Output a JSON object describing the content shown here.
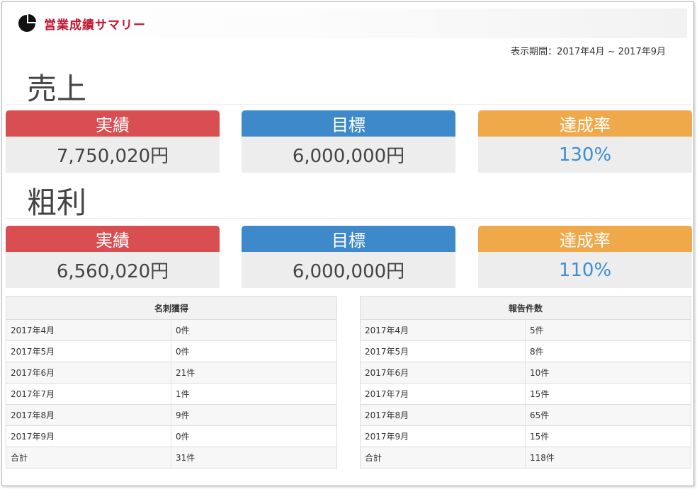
{
  "header": {
    "title": "営業成績サマリー",
    "logo_icon": "pie-chart-icon"
  },
  "period": "表示期間：2017年4月 ~ 2017年9月",
  "sales": {
    "title": "売上",
    "actual_label": "実績",
    "actual_value": "7,750,020円",
    "target_label": "目標",
    "target_value": "6,000,000円",
    "rate_label": "達成率",
    "rate_value": "130%"
  },
  "profit": {
    "title": "粗利",
    "actual_label": "実績",
    "actual_value": "6,560,020円",
    "target_label": "目標",
    "target_value": "6,000,000円",
    "rate_label": "達成率",
    "rate_value": "110%"
  },
  "cards_table": {
    "header": "名刺獲得",
    "rows": [
      {
        "month": "2017年4月",
        "count": "0件"
      },
      {
        "month": "2017年5月",
        "count": "0件"
      },
      {
        "month": "2017年6月",
        "count": "21件"
      },
      {
        "month": "2017年7月",
        "count": "1件"
      },
      {
        "month": "2017年8月",
        "count": "9件"
      },
      {
        "month": "2017年9月",
        "count": "0件"
      },
      {
        "month": "合計",
        "count": "31件"
      }
    ]
  },
  "reports_table": {
    "header": "報告件数",
    "rows": [
      {
        "month": "2017年4月",
        "count": "5件"
      },
      {
        "month": "2017年5月",
        "count": "8件"
      },
      {
        "month": "2017年6月",
        "count": "10件"
      },
      {
        "month": "2017年7月",
        "count": "15件"
      },
      {
        "month": "2017年8月",
        "count": "65件"
      },
      {
        "month": "2017年9月",
        "count": "15件"
      },
      {
        "month": "合計",
        "count": "118件"
      }
    ]
  },
  "colors": {
    "actual": "#d84e51",
    "target": "#3e89c9",
    "rate": "#efa94a",
    "title": "#c0152f"
  }
}
